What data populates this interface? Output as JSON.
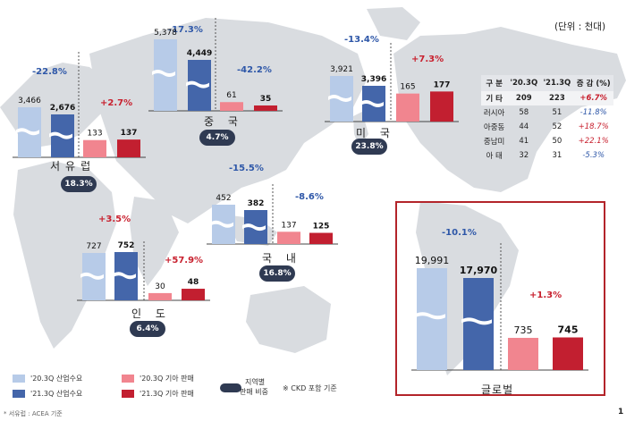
{
  "unit": "(단위 : 천대)",
  "colors": {
    "demand_2020": "#b7cbe8",
    "demand_2021": "#4466aa",
    "kia_2020": "#f1858f",
    "kia_2021": "#c21f30",
    "share": "#2f3a52"
  },
  "chart_data": [
    {
      "type": "bar",
      "region": "서유럽",
      "categories": [
        "'20.3Q 산업수요",
        "'21.3Q 산업수요",
        "'20.3Q 기아 판매",
        "'21.3Q 기아 판매"
      ],
      "values": [
        3466,
        2676,
        133,
        137
      ],
      "demand_change": "-22.8%",
      "kia_change": "+2.7%",
      "share": "18.3%"
    },
    {
      "type": "bar",
      "region": "중 국",
      "categories": [
        "'20.3Q 산업수요",
        "'21.3Q 산업수요",
        "'20.3Q 기아 판매",
        "'21.3Q 기아 판매"
      ],
      "values": [
        5378,
        4449,
        61,
        35
      ],
      "demand_change": "-17.3%",
      "kia_change": "-42.2%",
      "share": "4.7%"
    },
    {
      "type": "bar",
      "region": "미 국",
      "categories": [
        "'20.3Q 산업수요",
        "'21.3Q 산업수요",
        "'20.3Q 기아 판매",
        "'21.3Q 기아 판매"
      ],
      "values": [
        3921,
        3396,
        165,
        177
      ],
      "demand_change": "-13.4%",
      "kia_change": "+7.3%",
      "share": "23.8%"
    },
    {
      "type": "bar",
      "region": "국 내",
      "categories": [
        "'20.3Q 산업수요",
        "'21.3Q 산업수요",
        "'20.3Q 기아 판매",
        "'21.3Q 기아 판매"
      ],
      "values": [
        452,
        382,
        137,
        125
      ],
      "demand_change": "-15.5%",
      "kia_change": "-8.6%",
      "share": "16.8%"
    },
    {
      "type": "bar",
      "region": "인 도",
      "categories": [
        "'20.3Q 산업수요",
        "'21.3Q 산업수요",
        "'20.3Q 기아 판매",
        "'21.3Q 기아 판매"
      ],
      "values": [
        727,
        752,
        30,
        48
      ],
      "demand_change": "+3.5%",
      "kia_change": "+57.9%",
      "share": "6.4%"
    },
    {
      "type": "bar",
      "region": "글로벌",
      "categories": [
        "'20.3Q 산업수요",
        "'21.3Q 산업수요",
        "'20.3Q 기아 판매",
        "'21.3Q 기아 판매"
      ],
      "values": [
        19991,
        17970,
        735,
        745
      ],
      "demand_change": "-10.1%",
      "kia_change": "+1.3%"
    },
    {
      "type": "table",
      "columns": [
        "구 분",
        "'20.3Q",
        "'21.3Q",
        "증 감 (%)"
      ],
      "rows": [
        [
          "기 타",
          "209",
          "223",
          "+6.7%"
        ],
        [
          "러시아",
          "58",
          "51",
          "-11.8%"
        ],
        [
          "아중동",
          "44",
          "52",
          "+18.7%"
        ],
        [
          "중남미",
          "41",
          "50",
          "+22.1%"
        ],
        [
          "아 태",
          "32",
          "31",
          "-5.3%"
        ]
      ]
    }
  ],
  "legend": {
    "d20": "'20.3Q 산업수요",
    "d21": "'21.3Q 산업수요",
    "k20": "'20.3Q 기아 판매",
    "k21": "'21.3Q 기아 판매",
    "share_line1": "지역별",
    "share_line2": "판매 비중",
    "ckd": "※ CKD 포함 기준"
  },
  "footnote": "* 서유럽 : ACEA 기준",
  "page_number": "1"
}
